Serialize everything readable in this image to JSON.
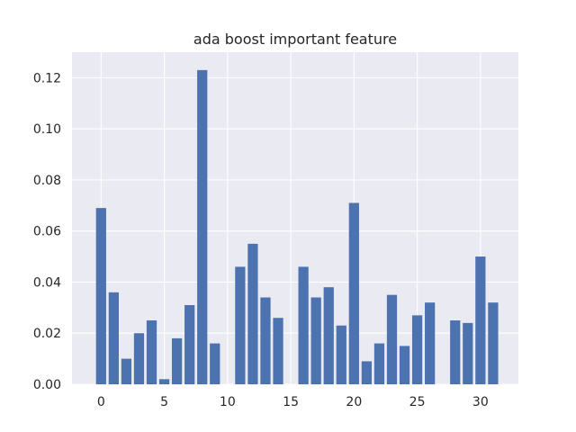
{
  "chart_data": {
    "type": "bar",
    "title": "ada boost important feature",
    "xlabel": "",
    "ylabel": "",
    "x": [
      0,
      1,
      2,
      3,
      4,
      5,
      6,
      7,
      8,
      9,
      10,
      11,
      12,
      13,
      14,
      15,
      16,
      17,
      18,
      19,
      20,
      21,
      22,
      23,
      24,
      25,
      26,
      27,
      28,
      29,
      30,
      31
    ],
    "values": [
      0.069,
      0.036,
      0.01,
      0.02,
      0.025,
      0.002,
      0.018,
      0.031,
      0.123,
      0.016,
      0.0,
      0.046,
      0.055,
      0.034,
      0.026,
      0.0,
      0.046,
      0.034,
      0.038,
      0.023,
      0.071,
      0.009,
      0.016,
      0.035,
      0.015,
      0.027,
      0.032,
      0.0,
      0.025,
      0.024,
      0.05,
      0.032
    ],
    "xlim": [
      -2.3,
      33.0
    ],
    "ylim": [
      0.0,
      0.13
    ],
    "x_ticks": [
      0,
      5,
      10,
      15,
      20,
      25,
      30
    ],
    "y_ticks": [
      0.0,
      0.02,
      0.04,
      0.06,
      0.08,
      0.1,
      0.12
    ],
    "y_tick_labels": [
      "0.00",
      "0.02",
      "0.04",
      "0.06",
      "0.08",
      "0.10",
      "0.12"
    ],
    "grid": true,
    "colors": {
      "bar": "#4c72b0",
      "background": "#eaeaf2",
      "grid": "#ffffff"
    }
  }
}
